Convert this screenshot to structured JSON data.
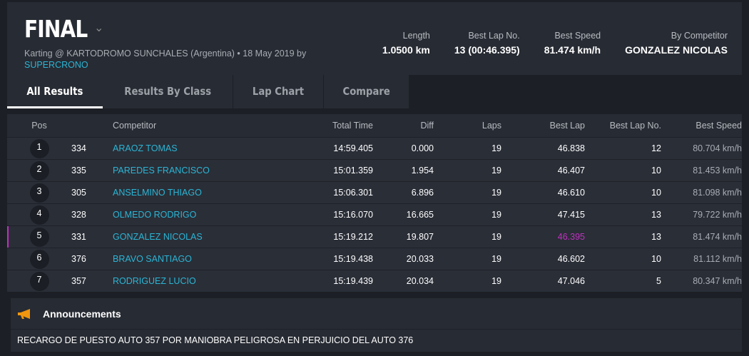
{
  "header": {
    "title": "FINAL",
    "subtitle": "Karting @ KARTODROMO SUNCHALES (Argentina) • 18 May 2019 by",
    "organizer": "SUPERCRONO",
    "stats": [
      {
        "label": "Length",
        "value": "1.0500 km"
      },
      {
        "label": "Best Lap No.",
        "value": "13 (00:46.395)"
      },
      {
        "label": "Best Speed",
        "value": "81.474 km/h"
      },
      {
        "label": "By Competitor",
        "value": "GONZALEZ NICOLAS"
      }
    ]
  },
  "tabs": [
    "All Results",
    "Results By Class",
    "Lap Chart",
    "Compare"
  ],
  "columns": [
    "Pos",
    "Competitor",
    "Total Time",
    "Diff",
    "Laps",
    "Best Lap",
    "Best Lap No.",
    "Best Speed"
  ],
  "rows": [
    [
      "1",
      "334",
      "ARAOZ TOMAS",
      "14:59.405",
      "0.000",
      "19",
      "46.838",
      "12",
      "80.704 km/h"
    ],
    [
      "2",
      "335",
      "PAREDES FRANCISCO",
      "15:01.359",
      "1.954",
      "19",
      "46.407",
      "10",
      "81.453 km/h"
    ],
    [
      "3",
      "305",
      "ANSELMINO THIAGO",
      "15:06.301",
      "6.896",
      "19",
      "46.610",
      "10",
      "81.098 km/h"
    ],
    [
      "4",
      "328",
      "OLMEDO RODRIGO",
      "15:16.070",
      "16.665",
      "19",
      "47.415",
      "13",
      "79.722 km/h"
    ],
    [
      "5",
      "331",
      "GONZALEZ NICOLAS",
      "15:19.212",
      "19.807",
      "19",
      "46.395",
      "13",
      "81.474 km/h"
    ],
    [
      "6",
      "376",
      "BRAVO SANTIAGO",
      "15:19.438",
      "20.033",
      "19",
      "46.602",
      "10",
      "81.112 km/h"
    ],
    [
      "7",
      "357",
      "RODRIGUEZ LUCIO",
      "15:19.439",
      "20.034",
      "19",
      "47.046",
      "5",
      "80.347 km/h"
    ]
  ],
  "announcements": {
    "title": "Announcements",
    "text": "RECARGO DE PUESTO AUTO 357 POR MANIOBRA PELIGROSA EN PERJUICIO DEL AUTO 376",
    "icon": "megaphone-icon"
  },
  "colors": {
    "link": "#2bb5d5",
    "best": "#c030c0",
    "icon": "#f0960f"
  }
}
